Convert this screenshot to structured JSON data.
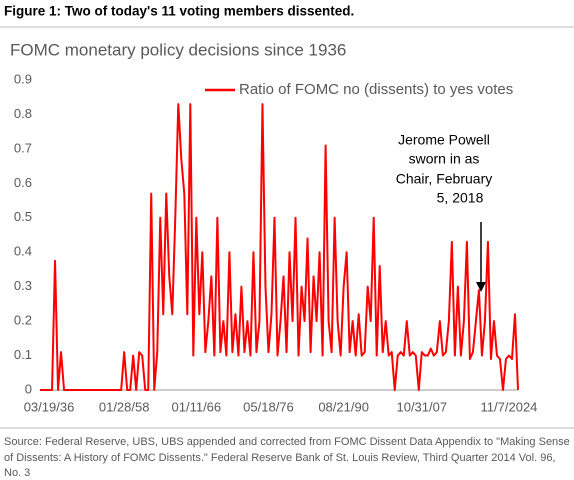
{
  "figure_title": "Figure 1: Two of today's 11 voting members dissented.",
  "source": [
    "Source: Federal Reserve, UBS, UBS appended and corrected from FOMC Dissent Data Appendix to \"Making Sense",
    "of Dissents: A History of FOMC Dissents.\" Federal Reserve Bank of St. Louis Review, Third Quarter 2014 Vol. 96,",
    "No. 3"
  ],
  "chart_data": {
    "type": "line",
    "title": "FOMC monetary policy decisions since 1936",
    "annotation": [
      "Jerome Powell",
      "sworn in as",
      "Chair, February",
      "5, 2018"
    ],
    "legend": "top",
    "ylim": [
      0,
      0.9
    ],
    "yticks": [
      0,
      0.1,
      0.2,
      0.3,
      0.4,
      0.5,
      0.6,
      0.7,
      0.8,
      0.9
    ],
    "categories": [
      null,
      null,
      null,
      "03/19/36",
      null,
      null,
      null,
      null,
      null,
      null,
      null,
      null,
      null,
      null,
      null,
      null,
      null,
      null,
      null,
      null,
      null,
      null,
      null,
      null,
      null,
      null,
      null,
      null,
      "01/28/58",
      null,
      null,
      null,
      null,
      null,
      null,
      null,
      null,
      null,
      null,
      null,
      null,
      null,
      null,
      null,
      null,
      null,
      null,
      null,
      null,
      null,
      null,
      null,
      "01/11/66",
      null,
      null,
      null,
      null,
      null,
      null,
      null,
      null,
      null,
      null,
      null,
      null,
      null,
      null,
      null,
      null,
      null,
      null,
      null,
      null,
      null,
      null,
      null,
      "05/18/76",
      null,
      null,
      null,
      null,
      null,
      null,
      null,
      null,
      null,
      null,
      null,
      null,
      null,
      null,
      null,
      null,
      null,
      null,
      null,
      null,
      null,
      null,
      null,
      null,
      "08/21/90",
      null,
      null,
      null,
      null,
      null,
      null,
      null,
      null,
      null,
      null,
      null,
      null,
      null,
      null,
      null,
      null,
      null,
      null,
      null,
      null,
      null,
      null,
      null,
      null,
      null,
      "10/31/07",
      null,
      null,
      null,
      null,
      null,
      null,
      null,
      null,
      null,
      null,
      null,
      null,
      null,
      null,
      null,
      null,
      null,
      null,
      null,
      null,
      null,
      null,
      null,
      null,
      null,
      null,
      null,
      null,
      "11/7/2024",
      null,
      null,
      null
    ],
    "series": [
      {
        "name": "Ratio of FOMC no (dissents) to yes votes",
        "color": "#ff0000",
        "values": [
          0,
          0,
          0,
          0,
          0,
          0.375,
          0,
          0.11,
          0,
          0,
          0,
          0,
          0,
          0,
          0,
          0,
          0,
          0,
          0,
          0,
          0,
          0,
          0,
          0,
          0,
          0,
          0,
          0,
          0.11,
          0,
          0,
          0.1,
          0,
          0.11,
          0.1,
          0,
          0,
          0.57,
          0,
          0.11,
          0.5,
          0.22,
          0.57,
          0.33,
          0.22,
          0.5,
          0.83,
          0.67,
          0.57,
          0.22,
          0.83,
          0.1,
          0.5,
          0.22,
          0.4,
          0.11,
          0.2,
          0.33,
          0.1,
          0.5,
          0.11,
          0.2,
          0.1,
          0.4,
          0.11,
          0.22,
          0.1,
          0.3,
          0.11,
          0.2,
          0.1,
          0.4,
          0.11,
          0.2,
          0.83,
          0.3,
          0.11,
          0.22,
          0.5,
          0.1,
          0.2,
          0.33,
          0.11,
          0.4,
          0.2,
          0.5,
          0.1,
          0.3,
          0.2,
          0.44,
          0.11,
          0.33,
          0.2,
          0.4,
          0.1,
          0.71,
          0.2,
          0.11,
          0.5,
          0.2,
          0.1,
          0.3,
          0.4,
          0.11,
          0.2,
          0.1,
          0.22,
          0.1,
          0.11,
          0.3,
          0.2,
          0.5,
          0.1,
          0.36,
          0.11,
          0.2,
          0.1,
          0.11,
          0,
          0.1,
          0.11,
          0.1,
          0.2,
          0.1,
          0.11,
          0.1,
          0,
          0.11,
          0.1,
          0.1,
          0.12,
          0.1,
          0.11,
          0.2,
          0.1,
          0.11,
          0.2,
          0.43,
          0.1,
          0.3,
          0.1,
          0.2,
          0.43,
          0.09,
          0.11,
          0.2,
          0.29,
          0.1,
          0.2,
          0.43,
          0.09,
          0.2,
          0.1,
          0.09,
          0,
          0.09,
          0.1,
          0.09,
          0.22,
          0
        ]
      }
    ]
  }
}
